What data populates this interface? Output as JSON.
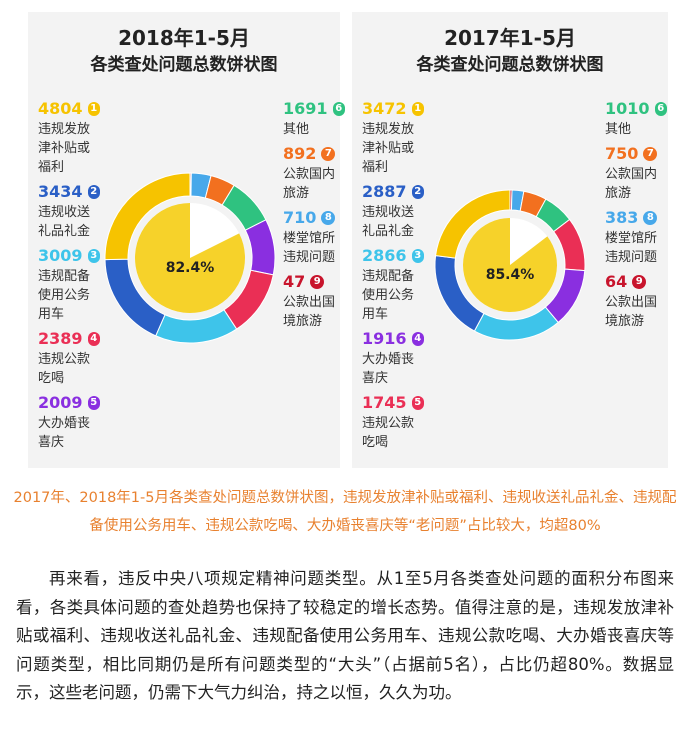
{
  "chart_data": [
    {
      "type": "pie",
      "title": "2018年1-5月",
      "subtitle": "各类查处问题总数饼状图",
      "categories": [
        "违规发放津补贴或福利",
        "违规收送礼品礼金",
        "违规配备使用公务用车",
        "违规公款吃喝",
        "大办婚丧喜庆",
        "其他",
        "公款国内旅游",
        "楼堂馆所违规问题",
        "公款出国境旅游"
      ],
      "values": [
        4804,
        3434,
        3009,
        2389,
        2009,
        1691,
        892,
        710,
        47
      ],
      "ranks": [
        1,
        2,
        3,
        4,
        5,
        6,
        7,
        8,
        9
      ],
      "colors": [
        "#f6c300",
        "#2a5fc6",
        "#3ec4ea",
        "#ea2f55",
        "#8a2fe0",
        "#2fc280",
        "#f2701f",
        "#47a8ea",
        "#c8142c"
      ],
      "center_value": 82.4,
      "center_label": "82.4%"
    },
    {
      "type": "pie",
      "title": "2017年1-5月",
      "subtitle": "各类查处问题总数饼状图",
      "categories": [
        "违规发放津补贴或福利",
        "违规收送礼品礼金",
        "违规配备使用公务用车",
        "大办婚丧喜庆",
        "违规公款吃喝",
        "其他",
        "公款国内旅游",
        "楼堂馆所违规问题",
        "公款出国境旅游"
      ],
      "values": [
        3472,
        2887,
        2866,
        1916,
        1745,
        1010,
        750,
        383,
        64
      ],
      "ranks": [
        1,
        2,
        3,
        4,
        5,
        6,
        7,
        8,
        9
      ],
      "colors": [
        "#f6c300",
        "#2a5fc6",
        "#3ec4ea",
        "#8a2fe0",
        "#ea2f55",
        "#2fc280",
        "#f2701f",
        "#47a8ea",
        "#c8142c"
      ],
      "center_value": 85.4,
      "center_label": "85.4%"
    }
  ],
  "caption": "2017年、2018年1-5月各类查处问题总数饼状图，违规发放津补贴或福利、违规收送礼品礼金、违规配备使用公务用车、违规公款吃喝、大办婚丧喜庆等“老问题”占比较大，均超80%",
  "body": "再来看，违反中央八项规定精神问题类型。从1至5月各类查处问题的面积分布图来看，各类具体问题的查处趋势也保持了较稳定的增长态势。值得注意的是，违规发放津补贴或福利、违规收送礼品礼金、违规配备使用公务用车、违规公款吃喝、大办婚丧喜庆等问题类型，相比同期仍是所有问题类型的“大头”（占据前5名），占比仍超80%。数据显示，这些老问题，仍需下大气力纠治，持之以恒，久久为功。"
}
